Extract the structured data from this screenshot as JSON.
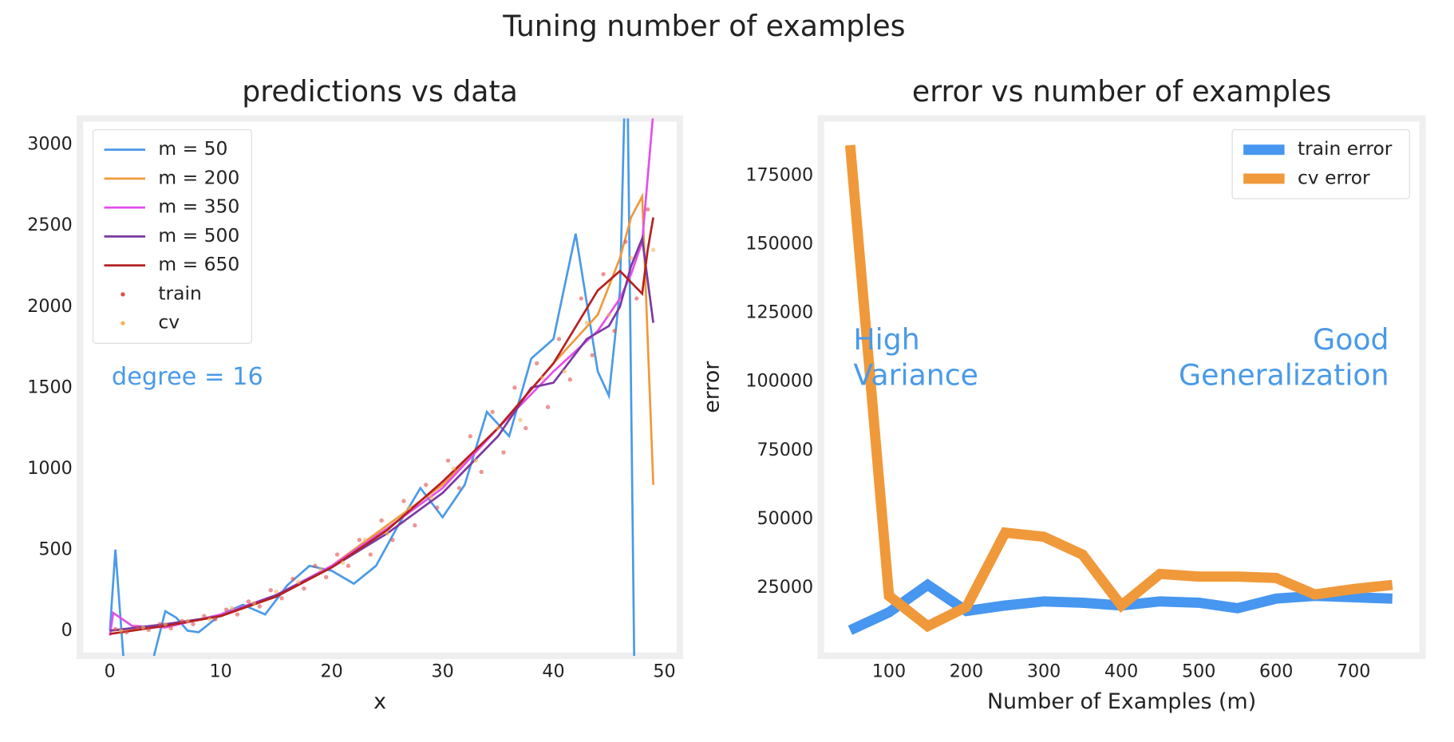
{
  "title": "Tuning number of examples",
  "chart_data": [
    {
      "type": "line",
      "title": "predictions vs data",
      "xlabel": "x",
      "annotations": [
        "degree = 16"
      ],
      "annotation_color": "#4a9ae8",
      "xlim": [
        -2.7,
        51.4
      ],
      "ylim": [
        -155,
        3161
      ],
      "xticks": [
        0,
        10,
        20,
        30,
        40,
        50
      ],
      "yticks": [
        0,
        500,
        1000,
        1500,
        2000,
        2500,
        3000
      ],
      "legend": "upper left",
      "series": [
        {
          "name": "m = 50",
          "color": "#4a9ae8",
          "style": "line",
          "x": [
            0,
            0.5,
            1.2,
            2,
            3,
            4,
            5,
            6,
            7,
            8,
            10,
            12,
            14,
            16,
            18,
            20,
            22,
            24,
            26,
            28,
            30,
            32,
            34,
            36,
            38,
            40,
            42,
            44,
            45,
            46,
            46.6,
            47.3
          ],
          "values": [
            0,
            500,
            -150,
            -400,
            -400,
            -150,
            120,
            80,
            0,
            -10,
            100,
            160,
            100,
            280,
            400,
            370,
            290,
            400,
            650,
            880,
            700,
            900,
            1350,
            1200,
            1680,
            1800,
            2450,
            1600,
            1450,
            2100,
            3800,
            -300
          ]
        },
        {
          "name": "m = 200",
          "color": "#f0993a",
          "style": "line",
          "x": [
            0,
            5,
            10,
            15,
            20,
            25,
            30,
            35,
            40,
            44,
            46,
            47,
            48,
            49
          ],
          "values": [
            0,
            30,
            90,
            210,
            400,
            650,
            900,
            1250,
            1650,
            1950,
            2300,
            2550,
            2680,
            900
          ]
        },
        {
          "name": "m = 350",
          "color": "#e54fe8",
          "style": "line",
          "x": [
            0,
            0.3,
            2,
            5,
            10,
            15,
            20,
            25,
            30,
            35,
            40,
            44,
            46,
            47,
            48,
            49
          ],
          "values": [
            -30,
            110,
            30,
            20,
            100,
            220,
            400,
            630,
            880,
            1250,
            1600,
            1850,
            2050,
            2200,
            2400,
            3200
          ]
        },
        {
          "name": "m = 500",
          "color": "#7a3aa0",
          "style": "line",
          "x": [
            0,
            5,
            10,
            15,
            20,
            25,
            30,
            35,
            38,
            40,
            43,
            45,
            46,
            47,
            48,
            49
          ],
          "values": [
            0,
            40,
            90,
            220,
            390,
            600,
            850,
            1200,
            1500,
            1530,
            1800,
            1880,
            2000,
            2250,
            2420,
            1900
          ]
        },
        {
          "name": "m = 650",
          "color": "#b52020",
          "style": "line",
          "x": [
            0,
            5,
            10,
            15,
            20,
            25,
            30,
            35,
            40,
            44,
            46,
            47,
            48,
            48.5,
            49
          ],
          "values": [
            -20,
            30,
            90,
            210,
            390,
            620,
            920,
            1250,
            1650,
            2100,
            2220,
            2150,
            2080,
            2350,
            2550
          ]
        },
        {
          "name": "train",
          "color": "#e05050",
          "style": "scatter",
          "x": [
            0.5,
            1.5,
            2.5,
            3.5,
            4.5,
            5.5,
            6.5,
            7.5,
            8.5,
            9.5,
            10.5,
            11.5,
            12.5,
            13.5,
            14.5,
            15.5,
            16.5,
            17.5,
            18.5,
            19.5,
            20.5,
            21.5,
            22.5,
            23.5,
            24.5,
            25.5,
            26.5,
            27.5,
            28.5,
            29.5,
            30.5,
            31.5,
            32.5,
            33.5,
            34.5,
            35.5,
            36.5,
            37.5,
            38.5,
            39.5,
            40.5,
            41.5,
            42.5,
            43.5,
            44.5,
            45.5,
            46.5,
            47.5,
            48.5
          ],
          "values": [
            10,
            -10,
            20,
            5,
            40,
            15,
            60,
            40,
            90,
            70,
            130,
            100,
            180,
            150,
            250,
            200,
            320,
            260,
            400,
            330,
            470,
            400,
            560,
            470,
            680,
            560,
            800,
            650,
            900,
            760,
            1050,
            880,
            1200,
            980,
            1350,
            1100,
            1500,
            1250,
            1650,
            1380,
            1800,
            1550,
            2050,
            1700,
            2200,
            1850,
            2400,
            2050,
            2600
          ]
        },
        {
          "name": "cv",
          "color": "#f5b45a",
          "style": "scatter",
          "x": [
            1,
            3,
            5,
            7,
            9,
            11,
            13,
            15,
            17,
            19,
            21,
            23,
            25,
            27,
            29,
            31,
            33,
            35,
            37,
            39,
            41,
            43,
            45,
            47,
            49
          ],
          "values": [
            0,
            20,
            40,
            60,
            70,
            140,
            170,
            240,
            300,
            380,
            420,
            560,
            600,
            760,
            820,
            1000,
            1050,
            1250,
            1300,
            1560,
            1600,
            1900,
            1950,
            2300,
            2350
          ]
        }
      ]
    },
    {
      "type": "line",
      "title": "error vs number of examples",
      "xlabel": "Number of Examples (m)",
      "ylabel": "error",
      "annotations": [
        [
          "High",
          "Variance"
        ],
        [
          "Good",
          "Generalization"
        ]
      ],
      "annotation_color": "#4a9ae8",
      "xlim": [
        12,
        789
      ],
      "ylim": [
        200,
        195700
      ],
      "xticks": [
        100,
        200,
        300,
        400,
        500,
        600,
        700
      ],
      "yticks": [
        25000,
        50000,
        75000,
        100000,
        125000,
        150000,
        175000
      ],
      "legend": "upper right",
      "series": [
        {
          "name": "train error",
          "color": "#4796f0",
          "style": "thick",
          "x": [
            50,
            100,
            150,
            200,
            250,
            300,
            350,
            400,
            450,
            500,
            550,
            600,
            650,
            700,
            750
          ],
          "values": [
            9500,
            16000,
            26000,
            16500,
            18500,
            20000,
            19500,
            18500,
            20000,
            19500,
            17500,
            21000,
            22000,
            21500,
            21000
          ]
        },
        {
          "name": "cv error",
          "color": "#f0993a",
          "style": "thick",
          "x": [
            50,
            100,
            150,
            200,
            250,
            300,
            350,
            400,
            450,
            500,
            550,
            600,
            650,
            700,
            750
          ],
          "values": [
            186000,
            22000,
            11000,
            18000,
            45000,
            43500,
            37000,
            18500,
            30000,
            29000,
            29000,
            28500,
            22500,
            24500,
            26000
          ]
        }
      ]
    }
  ]
}
